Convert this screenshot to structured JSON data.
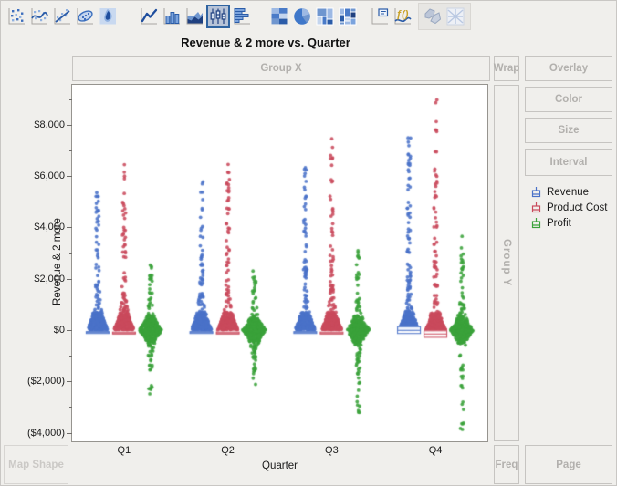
{
  "title": "Revenue & 2 more vs. Quarter",
  "toolbar": {
    "formula_glyph": "ƒ()",
    "items": [
      {
        "id": "points",
        "selected": false,
        "enabled": true
      },
      {
        "id": "smoother",
        "selected": false,
        "enabled": true
      },
      {
        "id": "line-of-fit",
        "selected": false,
        "enabled": true
      },
      {
        "id": "ellipse",
        "selected": false,
        "enabled": true
      },
      {
        "id": "contour",
        "selected": false,
        "enabled": true
      },
      {
        "id": "line",
        "selected": false,
        "enabled": true
      },
      {
        "id": "bar",
        "selected": false,
        "enabled": true
      },
      {
        "id": "area",
        "selected": false,
        "enabled": true
      },
      {
        "id": "box-plot",
        "selected": true,
        "enabled": true
      },
      {
        "id": "histogram",
        "selected": false,
        "enabled": true
      },
      {
        "id": "heatmap",
        "selected": false,
        "enabled": true
      },
      {
        "id": "pie",
        "selected": false,
        "enabled": true
      },
      {
        "id": "treemap",
        "selected": false,
        "enabled": true
      },
      {
        "id": "mosaic",
        "selected": false,
        "enabled": true
      },
      {
        "id": "caption-box",
        "selected": false,
        "enabled": true
      },
      {
        "id": "formula",
        "selected": false,
        "enabled": true
      },
      {
        "id": "map-shapes",
        "selected": false,
        "enabled": false
      },
      {
        "id": "parallel",
        "selected": false,
        "enabled": false
      }
    ]
  },
  "drop_zones": {
    "group_x": "Group X",
    "wrap": "Wrap",
    "overlay": "Overlay",
    "color": "Color",
    "size": "Size",
    "interval": "Interval",
    "group_y": "Group Y",
    "freq": "Freq",
    "page": "Page",
    "map_shape": "Map Shape"
  },
  "legend": {
    "items": [
      {
        "label": "Revenue",
        "color": "#4a72c8"
      },
      {
        "label": "Product Cost",
        "color": "#c94a5c"
      },
      {
        "label": "Profit",
        "color": "#3aa23a"
      }
    ]
  },
  "chart_data": {
    "type": "scatter",
    "subtype": "jittered-point-swarms-with-box-plots",
    "title": "Revenue & 2 more vs. Quarter",
    "xlabel": "Quarter",
    "ylabel": "Revenue & 2 more",
    "categories": [
      "Q1",
      "Q2",
      "Q3",
      "Q4"
    ],
    "grid": false,
    "legend_position": "right",
    "y_axis": {
      "tick_labels": [
        "$8,000",
        "$6,000",
        "$4,000",
        "$2,000",
        "$0",
        "($2,000)",
        "($4,000)"
      ],
      "tick_values": [
        8000,
        6000,
        4000,
        2000,
        0,
        -2000,
        -4000
      ],
      "minor_tick_values": [
        9000,
        7000,
        5000,
        3000,
        1000,
        -1000,
        -3000
      ],
      "ylim": [
        -4550,
        9550
      ]
    },
    "x_axis": {
      "tick_labels": [
        "Q1",
        "Q2",
        "Q3",
        "Q4"
      ]
    },
    "points_per_cluster": 400,
    "series": [
      {
        "name": "Revenue",
        "color": "#4a72c8",
        "dodge": -29,
        "kind": "positive",
        "clusters": [
          {
            "max": 5450
          },
          {
            "max": 5980
          },
          {
            "max": 6330
          },
          {
            "max": 7600
          }
        ],
        "boxes": [
          {
            "hi": -40,
            "lo": -150,
            "median": -95
          },
          {
            "hi": -40,
            "lo": -150,
            "median": -95
          },
          {
            "hi": -40,
            "lo": -150,
            "median": -95
          },
          {
            "hi": 150,
            "lo": -150,
            "median": -10
          }
        ]
      },
      {
        "name": "Product Cost",
        "color": "#c94a5c",
        "dodge": 0,
        "kind": "positive",
        "clusters": [
          {
            "max": 6520
          },
          {
            "max": 6700
          },
          {
            "max": 7480
          },
          {
            "max": 9300
          }
        ],
        "boxes": [
          {
            "hi": -60,
            "lo": -170,
            "median": -115
          },
          {
            "hi": -60,
            "lo": -170,
            "median": -115
          },
          {
            "hi": -60,
            "lo": -170,
            "median": -115
          },
          {
            "hi": -10,
            "lo": -300,
            "median": -150
          }
        ]
      },
      {
        "name": "Profit",
        "color": "#3aa23a",
        "dodge": 29,
        "kind": "symmetric",
        "clusters": [
          {
            "up": 2850,
            "down": -2600
          },
          {
            "up": 2450,
            "down": -2250
          },
          {
            "up": 3150,
            "down": -3280
          },
          {
            "up": 3700,
            "down": -4300
          }
        ]
      }
    ]
  }
}
